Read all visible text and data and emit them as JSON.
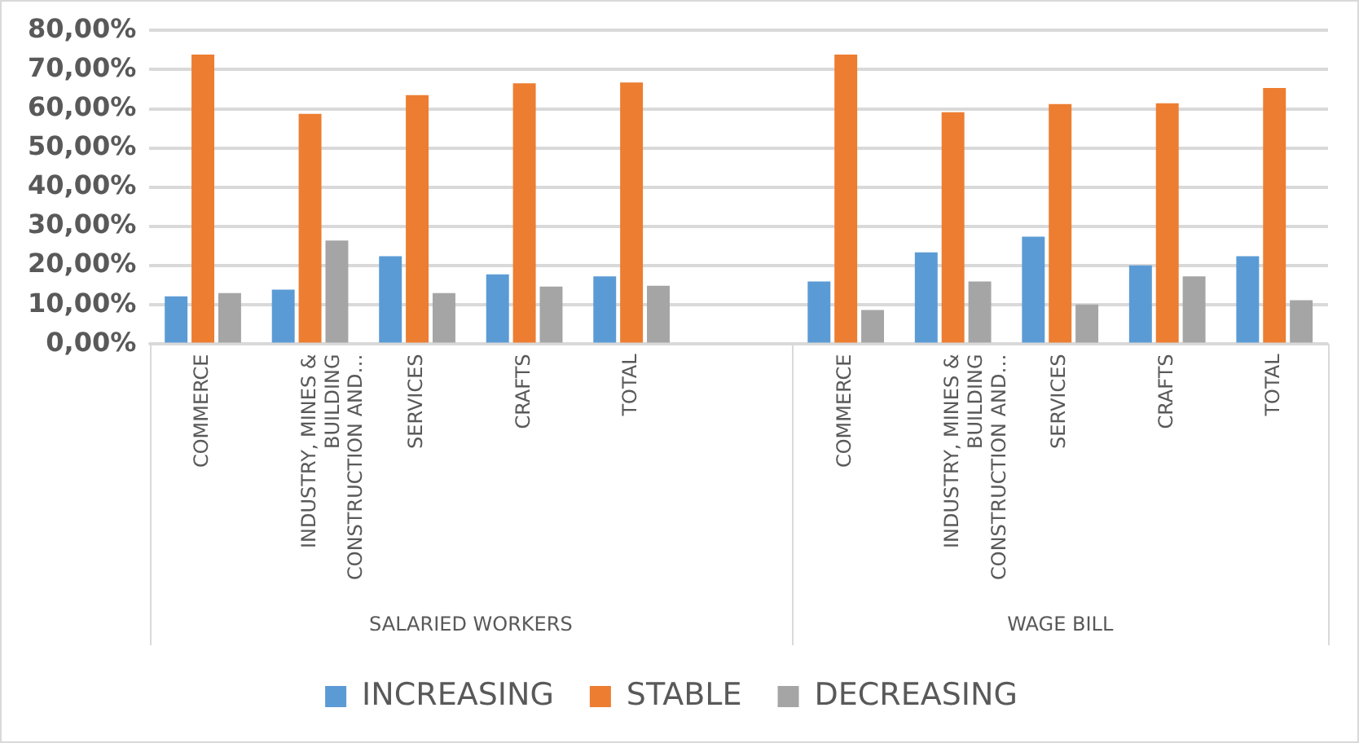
{
  "chart_data": {
    "type": "bar",
    "categories": [
      "COMMERCE",
      "INDUSTRY, MINES & BUILDING CONSTRUCTION AND…",
      "SERVICES",
      "CRAFTS",
      "TOTAL",
      null,
      "COMMERCE",
      "INDUSTRY, MINES & BUILDING CONSTRUCTION AND…",
      "SERVICES",
      "CRAFTS",
      "TOTAL"
    ],
    "series": [
      {
        "name": "INCREASING",
        "color": "#5b9bd5",
        "values": [
          12.2,
          13.9,
          22.4,
          17.8,
          17.3,
          null,
          16.0,
          23.4,
          27.4,
          20.1,
          22.4
        ]
      },
      {
        "name": "STABLE",
        "color": "#ed7d31",
        "values": [
          73.8,
          58.7,
          63.5,
          66.5,
          66.7,
          null,
          73.8,
          59.1,
          61.2,
          61.4,
          65.3
        ]
      },
      {
        "name": "DECREASING",
        "color": "#a5a5a5",
        "values": [
          13.0,
          26.4,
          13.0,
          14.7,
          14.9,
          null,
          8.7,
          16.0,
          10.1,
          17.3,
          11.2
        ]
      }
    ],
    "annotations": [
      "SALARIED WORKERS",
      "WAGE BILL"
    ],
    "ylim": [
      0,
      80
    ],
    "yticks": [
      {
        "value": 0,
        "label": "0,00%"
      },
      {
        "value": 10,
        "label": "10,00%"
      },
      {
        "value": 20,
        "label": "20,00%"
      },
      {
        "value": 30,
        "label": "30,00%"
      },
      {
        "value": 40,
        "label": "40,00%"
      },
      {
        "value": 50,
        "label": "50,00%"
      },
      {
        "value": 60,
        "label": "60,00%"
      },
      {
        "value": 70,
        "label": "70,00%"
      },
      {
        "value": 80,
        "label": "80,00%"
      }
    ],
    "grid": "y",
    "legend": "bottom"
  }
}
